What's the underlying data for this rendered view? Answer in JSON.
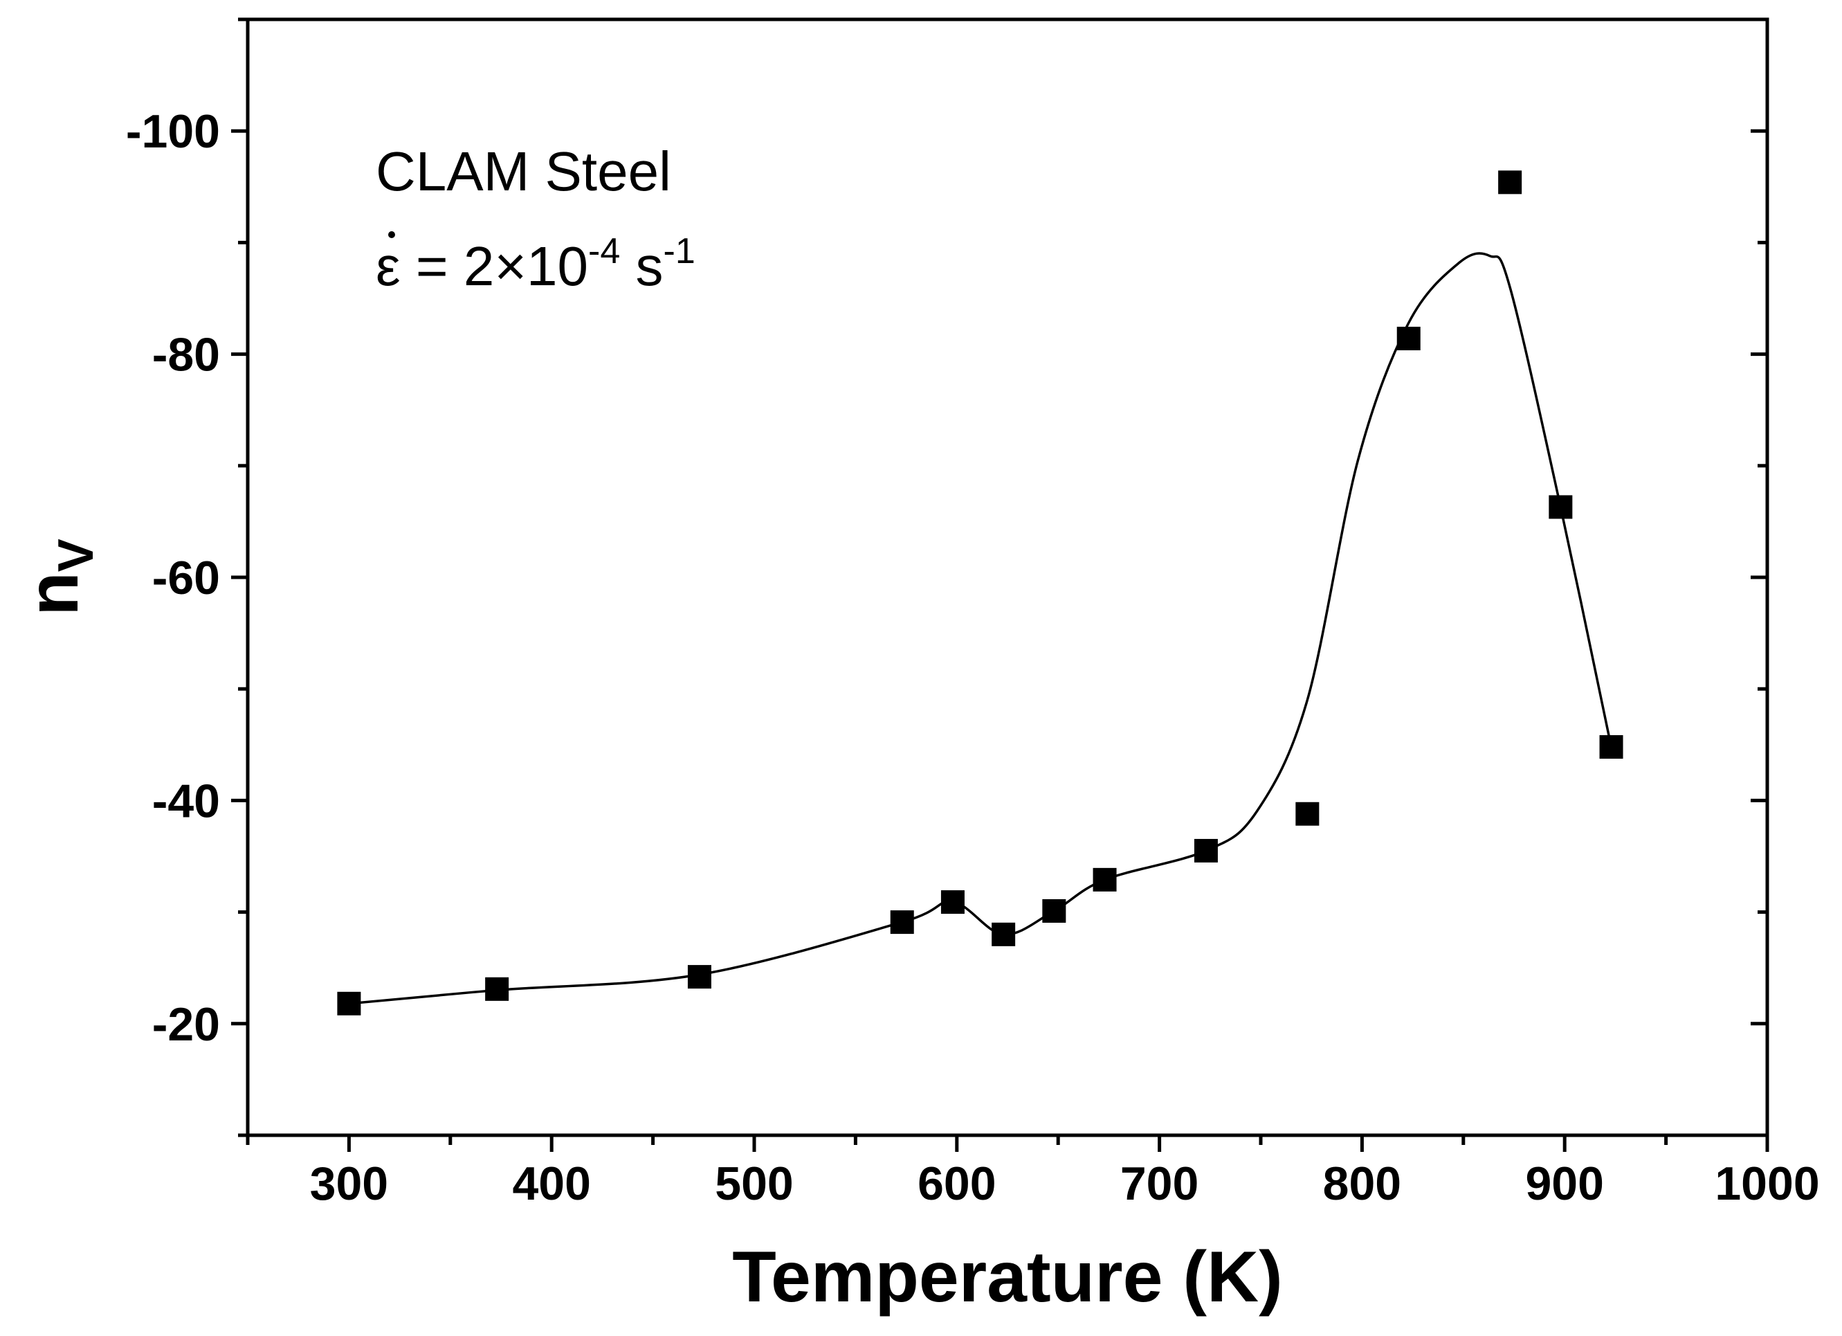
{
  "chart_data": {
    "type": "scatter",
    "title": "",
    "xlabel": "Temperature (K)",
    "ylabel_main": "n",
    "ylabel_sub": "V",
    "xlim": [
      250,
      1000
    ],
    "ylim": [
      -10,
      -110
    ],
    "y_axis_inverted": true,
    "grid": false,
    "x_ticks": [
      300,
      400,
      500,
      600,
      700,
      800,
      900,
      1000
    ],
    "x_tick_labels": [
      "300",
      "400",
      "500",
      "600",
      "700",
      "800",
      "900",
      "1000"
    ],
    "x_minor_ticks": [
      250,
      350,
      450,
      550,
      650,
      750,
      850,
      950
    ],
    "y_ticks": [
      -20,
      -40,
      -60,
      -80,
      -100
    ],
    "y_tick_labels": [
      "-20",
      "-40",
      "-60",
      "-80",
      "-100"
    ],
    "y_minor_ticks": [
      -10,
      -30,
      -50,
      -70,
      -90,
      -110
    ],
    "annotation": {
      "material": "CLAM Steel",
      "rate_symbol": "ε",
      "rate_text": " = 2×10",
      "rate_exp": "-4",
      "rate_unit": " s",
      "rate_unit_exp": "-1"
    },
    "series": [
      {
        "name": "data",
        "marker": "square",
        "x": [
          300,
          373,
          473,
          573,
          598,
          623,
          648,
          673,
          723,
          773,
          823,
          873,
          898,
          923
        ],
        "y": [
          -21.8,
          -23.1,
          -24.2,
          -29.1,
          -30.9,
          -28.0,
          -30.1,
          -32.9,
          -35.5,
          -38.8,
          -81.4,
          -95.4,
          -66.3,
          -44.8
        ]
      },
      {
        "name": "fit",
        "marker": "line",
        "x": [
          300,
          373,
          473,
          573,
          598,
          623,
          648,
          673,
          723,
          748,
          773,
          798,
          823,
          848,
          863,
          873,
          898,
          923
        ],
        "y": [
          -21.8,
          -23.0,
          -24.4,
          -29.1,
          -30.9,
          -28.0,
          -30.1,
          -32.9,
          -35.5,
          -39.0,
          -49.0,
          -70.5,
          -82.8,
          -88.2,
          -88.8,
          -86.0,
          -66.3,
          -44.8
        ]
      }
    ]
  }
}
